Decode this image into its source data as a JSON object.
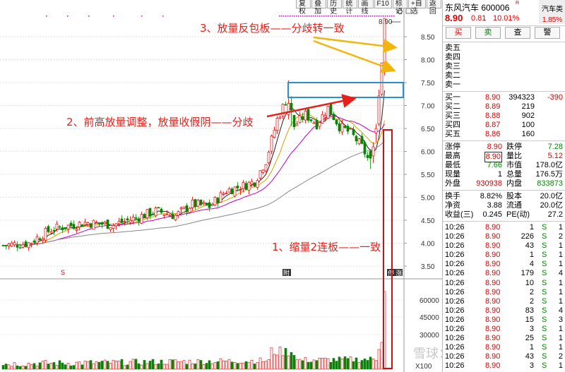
{
  "toolbar": [
    {
      "label": "复权"
    },
    {
      "label": "叠加"
    },
    {
      "label": "历史"
    },
    {
      "label": "统计"
    },
    {
      "label": "画线"
    },
    {
      "label": "F10"
    },
    {
      "label": "标记"
    },
    {
      "label": "+自选"
    },
    {
      "label": "返回"
    }
  ],
  "stock": {
    "name": "东风汽车 600006",
    "r_badge": "R",
    "price": "8.90",
    "change": "0.81",
    "change_pct": "10.01%",
    "sector": "汽车类",
    "sector_pct": "1.85%"
  },
  "buttons": {
    "buy": "买",
    "sell": "卖",
    "query": "查",
    "alert": "警"
  },
  "sell_orders": [
    {
      "label": "卖五"
    },
    {
      "label": "卖四"
    },
    {
      "label": "卖三"
    },
    {
      "label": "卖二"
    },
    {
      "label": "卖一"
    }
  ],
  "buy_orders": [
    {
      "label": "买一",
      "price": "8.90",
      "vol": "394323",
      "chg": "-390"
    },
    {
      "label": "买二",
      "price": "8.89",
      "vol": "219",
      "chg": ""
    },
    {
      "label": "买三",
      "price": "8.88",
      "vol": "902",
      "chg": ""
    },
    {
      "label": "买四",
      "price": "8.87",
      "vol": "100",
      "chg": ""
    },
    {
      "label": "买五",
      "price": "8.86",
      "vol": "160",
      "chg": ""
    }
  ],
  "quote1": [
    {
      "l1": "涨停",
      "v1": "8.90",
      "l2": "跌停",
      "v2": "7.28"
    },
    {
      "l1": "最高",
      "v1": "8.90",
      "l2": "量比",
      "v2": "5.12"
    },
    {
      "l1": "最低",
      "v1": "7.66",
      "l2": "市值",
      "v2": "178.0亿"
    },
    {
      "l1": "现量",
      "v1": "1",
      "l2": "总量",
      "v2": "176.5万"
    },
    {
      "l1": "外盘",
      "v1": "930938",
      "l2": "内盘",
      "v2": "833873"
    }
  ],
  "quote2": [
    {
      "l1": "换手",
      "v1": "8.82%",
      "l2": "股本",
      "v2": "20.0亿"
    },
    {
      "l1": "净资",
      "v1": "3.88",
      "l2": "流通",
      "v2": "20.0亿"
    },
    {
      "l1": "收益(三)",
      "v1": "0.245",
      "l2": "PE(动)",
      "v2": "27.2"
    }
  ],
  "ticks": [
    {
      "t": "10:26",
      "p": "8.90",
      "v": "1",
      "d": "S",
      "n": "1"
    },
    {
      "t": "10:26",
      "p": "8.90",
      "v": "226",
      "d": "S",
      "n": "2"
    },
    {
      "t": "10:26",
      "p": "8.90",
      "v": "43",
      "d": "S",
      "n": "1"
    },
    {
      "t": "10:26",
      "p": "8.90",
      "v": "1",
      "d": "S",
      "n": "1"
    },
    {
      "t": "10:26",
      "p": "8.90",
      "v": "4",
      "d": "S",
      "n": "1"
    },
    {
      "t": "10:26",
      "p": "8.90",
      "v": "179",
      "d": "S",
      "n": "4"
    },
    {
      "t": "10:26",
      "p": "8.90",
      "v": "10",
      "d": "S",
      "n": "1"
    },
    {
      "t": "10:26",
      "p": "8.90",
      "v": "2",
      "d": "S",
      "n": "1"
    },
    {
      "t": "10:26",
      "p": "8.90",
      "v": "2",
      "d": "S",
      "n": "1"
    },
    {
      "t": "10:26",
      "p": "8.90",
      "v": "83",
      "d": "S",
      "n": "4"
    },
    {
      "t": "10:26",
      "p": "8.90",
      "v": "15",
      "d": "S",
      "n": "3"
    },
    {
      "t": "10:26",
      "p": "8.90",
      "v": "3",
      "d": "S",
      "n": "1"
    },
    {
      "t": "10:26",
      "p": "8.90",
      "v": "25",
      "d": "S",
      "n": "1"
    },
    {
      "t": "10:26",
      "p": "8.90",
      "v": "1",
      "d": "S",
      "n": "1"
    },
    {
      "t": "10:26",
      "p": "8.90",
      "v": "43",
      "d": "S",
      "n": "2"
    },
    {
      "t": "10:26",
      "p": "8.90",
      "v": "3",
      "d": "S",
      "n": "1"
    }
  ],
  "chart": {
    "price_ticks": [
      "8.50",
      "8.00",
      "7.50",
      "7.00",
      "6.50",
      "6.00",
      "5.50",
      "5.00",
      "4.50",
      "4.00",
      "3.50"
    ],
    "vol_ticks": [
      "60000",
      "45000",
      "30000"
    ],
    "vol_unit": "X100",
    "high_label": "8.90",
    "annot1": "3、放量反包板——分歧转一致",
    "annot2": "2、前高放量调整，放量收假阴——分歧",
    "annot3": "1、缩量2连板——一致",
    "watermark": "雪球：宗爱玩股",
    "marker_s": "S",
    "marker_f": "附",
    "marker_end": "停 涨",
    "colors": {
      "up": "#e00000",
      "down": "#008800",
      "ma5": "#222222",
      "ma10": "#d4a000",
      "ma20": "#c000c0",
      "ma60": "#888888",
      "annot": "#e8201a",
      "arrow_red": "#e8201a",
      "arrow_gold": "#f2b50c",
      "box_blue": "#2a8fd0",
      "box_red": "#d01010"
    }
  }
}
